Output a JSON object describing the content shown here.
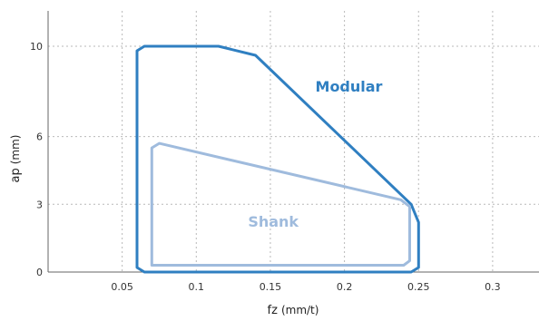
{
  "chart_data": {
    "type": "area",
    "title": "",
    "xlabel": "fz",
    "xlabel_unit": "(mm/t)",
    "ylabel": "ap",
    "ylabel_unit": "(mm)",
    "xlim": [
      0,
      0.33
    ],
    "ylim": [
      0,
      11.5
    ],
    "x_ticks": [
      0.05,
      0.1,
      0.15,
      0.2,
      0.25,
      0.3
    ],
    "x_tick_labels": [
      "0.05",
      "0.1",
      "0.15",
      "0.2",
      "0.25",
      "0.3"
    ],
    "y_ticks": [
      0,
      3,
      6,
      10
    ],
    "y_tick_labels": [
      "0",
      "3",
      "6",
      "10"
    ],
    "grid": true,
    "series": [
      {
        "name": "Modular",
        "color": "#2f7fc1",
        "points": [
          [
            0.06,
            0.2
          ],
          [
            0.06,
            9.8
          ],
          [
            0.065,
            10.0
          ],
          [
            0.115,
            10.0
          ],
          [
            0.14,
            9.6
          ],
          [
            0.245,
            3.0
          ],
          [
            0.25,
            2.2
          ],
          [
            0.25,
            0.2
          ],
          [
            0.245,
            0.0
          ],
          [
            0.065,
            0.0
          ]
        ],
        "label_pos": [
          0.203,
          8.0
        ]
      },
      {
        "name": "Shank",
        "color": "#9fbbdd",
        "points": [
          [
            0.07,
            0.3
          ],
          [
            0.07,
            5.5
          ],
          [
            0.075,
            5.7
          ],
          [
            0.238,
            3.2
          ],
          [
            0.244,
            2.9
          ],
          [
            0.244,
            0.5
          ],
          [
            0.24,
            0.3
          ],
          [
            0.08,
            0.3
          ]
        ],
        "label_pos": [
          0.152,
          2.0
        ]
      }
    ]
  }
}
